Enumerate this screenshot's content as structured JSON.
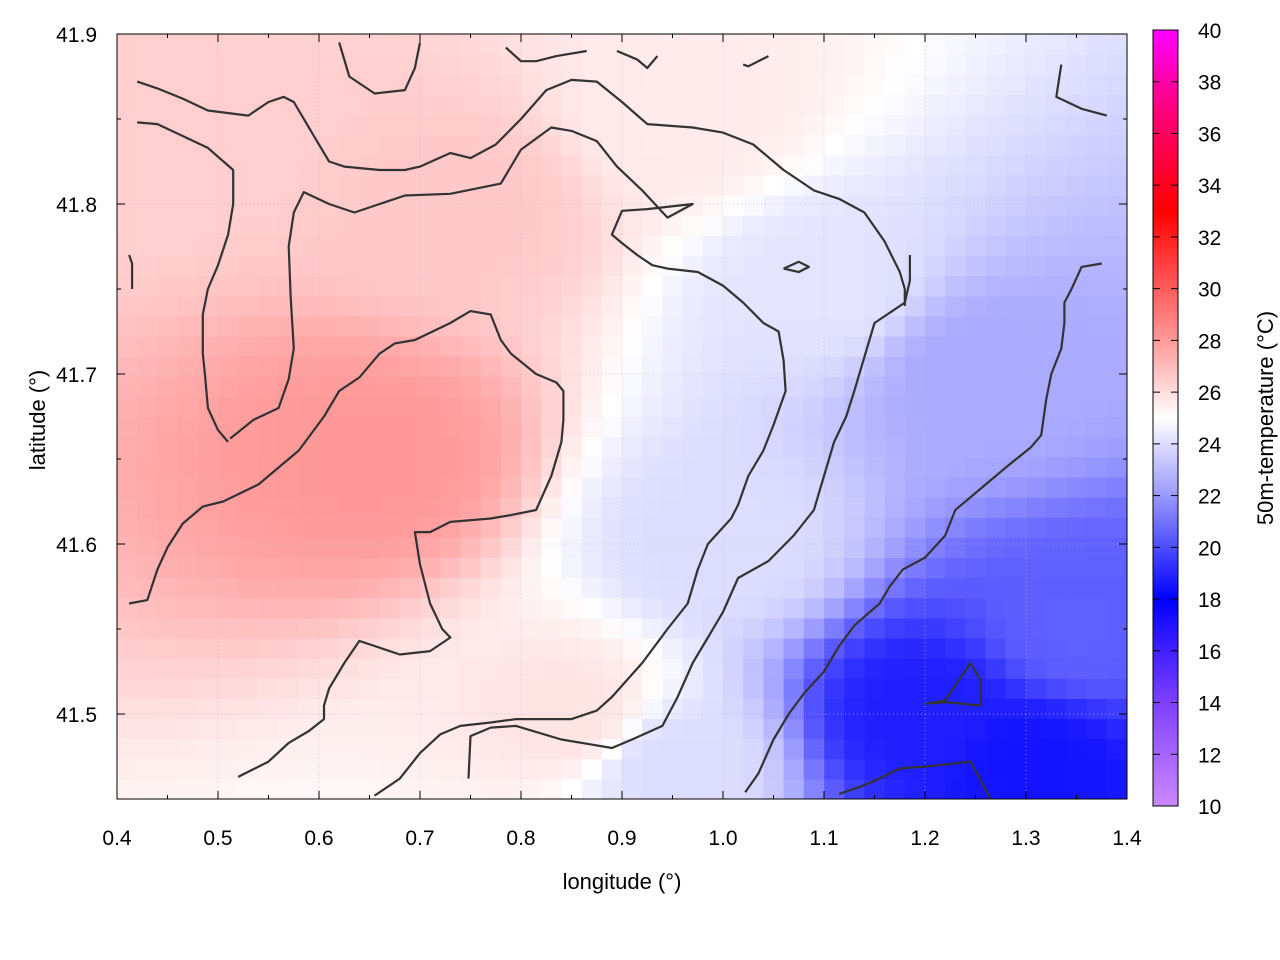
{
  "chart_data": {
    "type": "heatmap",
    "title": "",
    "xlabel": "longitude (°)",
    "ylabel": "latitude (°)",
    "colorbar_label": "50m-temperature (°C)",
    "xlim": [
      0.4,
      1.4
    ],
    "ylim": [
      41.45,
      41.9
    ],
    "x_ticks": [
      0.4,
      0.5,
      0.6,
      0.7,
      0.8,
      0.9,
      1.0,
      1.1,
      1.2,
      1.3,
      1.4
    ],
    "x_tick_labels": [
      "0.4",
      "0.5",
      "0.6",
      "0.7",
      "0.8",
      "0.9",
      "1.0",
      "1.1",
      "1.2",
      "1.3",
      "1.4"
    ],
    "y_ticks": [
      41.5,
      41.6,
      41.7,
      41.8,
      41.9
    ],
    "y_tick_labels": [
      "41.5",
      "41.6",
      "41.7",
      "41.8",
      "41.9"
    ],
    "colorbar_range": [
      10,
      40
    ],
    "colorbar_ticks": [
      10,
      12,
      14,
      16,
      18,
      20,
      22,
      24,
      26,
      28,
      30,
      32,
      34,
      36,
      38,
      40
    ],
    "colorbar_tick_labels": [
      "10",
      "12",
      "14",
      "16",
      "18",
      "20",
      "22",
      "24",
      "26",
      "28",
      "30",
      "32",
      "34",
      "36",
      "38",
      "40"
    ],
    "colormap": [
      {
        "value": 10,
        "color": "#cc88ff"
      },
      {
        "value": 14,
        "color": "#7f40ff"
      },
      {
        "value": 18,
        "color": "#0000ff"
      },
      {
        "value": 22,
        "color": "#9999ff"
      },
      {
        "value": 25,
        "color": "#ffffff"
      },
      {
        "value": 28,
        "color": "#ff9999"
      },
      {
        "value": 33,
        "color": "#ff0000"
      },
      {
        "value": 37,
        "color": "#ff0080"
      },
      {
        "value": 40,
        "color": "#ff00ff"
      }
    ],
    "grid": true,
    "field_description_points": [
      {
        "lon": 0.45,
        "lat": 41.85,
        "temp": 26.4
      },
      {
        "lon": 0.65,
        "lat": 41.65,
        "temp": 28.0
      },
      {
        "lon": 0.75,
        "lat": 41.8,
        "temp": 26.6
      },
      {
        "lon": 0.95,
        "lat": 41.85,
        "temp": 25.6
      },
      {
        "lon": 1.0,
        "lat": 41.6,
        "temp": 24.0
      },
      {
        "lon": 1.1,
        "lat": 41.75,
        "temp": 24.2
      },
      {
        "lon": 1.25,
        "lat": 41.7,
        "temp": 22.5
      },
      {
        "lon": 1.35,
        "lat": 41.55,
        "temp": 20.5
      },
      {
        "lon": 1.2,
        "lat": 41.5,
        "temp": 18.8
      },
      {
        "lon": 1.3,
        "lat": 41.47,
        "temp": 18.5
      },
      {
        "lon": 0.85,
        "lat": 41.5,
        "temp": 25.8
      },
      {
        "lon": 0.95,
        "lat": 41.47,
        "temp": 24.0
      }
    ],
    "contour_color": "#333333",
    "contours": [
      [
        [
          0.42,
          41.872
        ],
        [
          0.44,
          41.868
        ],
        [
          0.465,
          41.862
        ],
        [
          0.49,
          41.855
        ],
        [
          0.53,
          41.852
        ],
        [
          0.55,
          41.86
        ],
        [
          0.565,
          41.863
        ],
        [
          0.575,
          41.86
        ],
        [
          0.595,
          41.84
        ],
        [
          0.61,
          41.825
        ],
        [
          0.625,
          41.822
        ],
        [
          0.66,
          41.82
        ],
        [
          0.685,
          41.82
        ],
        [
          0.7,
          41.822
        ],
        [
          0.73,
          41.83
        ],
        [
          0.75,
          41.827
        ],
        [
          0.775,
          41.835
        ],
        [
          0.8,
          41.85
        ],
        [
          0.825,
          41.867
        ],
        [
          0.85,
          41.873
        ],
        [
          0.875,
          41.872
        ],
        [
          0.9,
          41.86
        ],
        [
          0.925,
          41.847
        ],
        [
          0.97,
          41.845
        ],
        [
          1.0,
          41.842
        ],
        [
          1.03,
          41.835
        ],
        [
          1.06,
          41.82
        ],
        [
          1.09,
          41.808
        ],
        [
          1.115,
          41.803
        ],
        [
          1.14,
          41.795
        ],
        [
          1.16,
          41.778
        ],
        [
          1.17,
          41.766
        ],
        [
          1.175,
          41.76
        ],
        [
          1.18,
          41.75
        ],
        [
          1.18,
          41.74
        ]
      ],
      [
        [
          0.42,
          41.848
        ],
        [
          0.44,
          41.847
        ],
        [
          0.465,
          41.84
        ],
        [
          0.49,
          41.833
        ],
        [
          0.515,
          41.82
        ],
        [
          0.515,
          41.8
        ],
        [
          0.51,
          41.782
        ],
        [
          0.5,
          41.764
        ],
        [
          0.49,
          41.75
        ],
        [
          0.485,
          41.735
        ],
        [
          0.485,
          41.712
        ],
        [
          0.487,
          41.7
        ],
        [
          0.49,
          41.68
        ],
        [
          0.5,
          41.667
        ],
        [
          0.51,
          41.66
        ]
      ],
      [
        [
          0.512,
          41.662
        ],
        [
          0.535,
          41.673
        ],
        [
          0.56,
          41.68
        ],
        [
          0.57,
          41.697
        ],
        [
          0.575,
          41.715
        ],
        [
          0.572,
          41.745
        ],
        [
          0.57,
          41.775
        ],
        [
          0.575,
          41.795
        ],
        [
          0.585,
          41.807
        ],
        [
          0.61,
          41.8
        ],
        [
          0.635,
          41.795
        ],
        [
          0.66,
          41.8
        ],
        [
          0.685,
          41.805
        ],
        [
          0.73,
          41.806
        ],
        [
          0.78,
          41.812
        ],
        [
          0.8,
          41.832
        ],
        [
          0.83,
          41.845
        ],
        [
          0.85,
          41.843
        ],
        [
          0.875,
          41.837
        ],
        [
          0.895,
          41.822
        ],
        [
          0.92,
          41.808
        ],
        [
          0.945,
          41.792
        ],
        [
          0.97,
          41.8
        ],
        [
          0.925,
          41.797
        ],
        [
          0.9,
          41.796
        ],
        [
          0.89,
          41.782
        ],
        [
          0.9,
          41.777
        ],
        [
          0.915,
          41.77
        ],
        [
          0.93,
          41.764
        ],
        [
          0.945,
          41.762
        ],
        [
          0.975,
          41.76
        ],
        [
          1.0,
          41.752
        ],
        [
          1.02,
          41.742
        ],
        [
          1.04,
          41.73
        ],
        [
          1.055,
          41.725
        ],
        [
          1.06,
          41.708
        ],
        [
          1.062,
          41.69
        ],
        [
          1.05,
          41.67
        ],
        [
          1.04,
          41.655
        ],
        [
          1.025,
          41.64
        ],
        [
          1.015,
          41.623
        ],
        [
          1.008,
          41.615
        ],
        [
          0.985,
          41.6
        ],
        [
          0.975,
          41.585
        ],
        [
          0.965,
          41.565
        ],
        [
          0.945,
          41.55
        ],
        [
          0.92,
          41.53
        ],
        [
          0.89,
          41.51
        ],
        [
          0.875,
          41.502
        ],
        [
          0.85,
          41.497
        ],
        [
          0.795,
          41.497
        ],
        [
          0.77,
          41.495
        ],
        [
          0.74,
          41.493
        ],
        [
          0.72,
          41.488
        ],
        [
          0.7,
          41.477
        ],
        [
          0.68,
          41.462
        ],
        [
          0.655,
          41.452
        ]
      ],
      [
        [
          0.412,
          41.565
        ],
        [
          0.43,
          41.567
        ],
        [
          0.44,
          41.585
        ],
        [
          0.45,
          41.598
        ],
        [
          0.465,
          41.612
        ],
        [
          0.485,
          41.622
        ],
        [
          0.505,
          41.625
        ],
        [
          0.54,
          41.635
        ],
        [
          0.56,
          41.645
        ],
        [
          0.58,
          41.655
        ],
        [
          0.595,
          41.667
        ],
        [
          0.605,
          41.675
        ],
        [
          0.62,
          41.69
        ],
        [
          0.64,
          41.698
        ],
        [
          0.66,
          41.712
        ],
        [
          0.675,
          41.718
        ],
        [
          0.695,
          41.72
        ],
        [
          0.73,
          41.73
        ],
        [
          0.75,
          41.737
        ],
        [
          0.77,
          41.735
        ],
        [
          0.78,
          41.72
        ],
        [
          0.79,
          41.712
        ],
        [
          0.815,
          41.7
        ],
        [
          0.835,
          41.695
        ],
        [
          0.842,
          41.69
        ],
        [
          0.842,
          41.673
        ],
        [
          0.84,
          41.66
        ],
        [
          0.83,
          41.64
        ],
        [
          0.815,
          41.62
        ],
        [
          0.79,
          41.617
        ],
        [
          0.77,
          41.615
        ],
        [
          0.73,
          41.613
        ],
        [
          0.71,
          41.607
        ],
        [
          0.695,
          41.607
        ],
        [
          0.7,
          41.588
        ],
        [
          0.71,
          41.565
        ],
        [
          0.722,
          41.55
        ],
        [
          0.73,
          41.545
        ],
        [
          0.71,
          41.537
        ],
        [
          0.68,
          41.535
        ],
        [
          0.655,
          41.54
        ],
        [
          0.64,
          41.543
        ],
        [
          0.625,
          41.53
        ],
        [
          0.61,
          41.515
        ],
        [
          0.605,
          41.505
        ],
        [
          0.605,
          41.497
        ],
        [
          0.59,
          41.49
        ],
        [
          0.57,
          41.483
        ],
        [
          0.55,
          41.472
        ],
        [
          0.52,
          41.463
        ]
      ],
      [
        [
          0.748,
          41.462
        ],
        [
          0.75,
          41.487
        ],
        [
          0.77,
          41.492
        ],
        [
          0.795,
          41.493
        ],
        [
          0.84,
          41.485
        ],
        [
          0.87,
          41.482
        ],
        [
          0.89,
          41.48
        ],
        [
          0.91,
          41.485
        ],
        [
          0.94,
          41.493
        ],
        [
          0.955,
          41.51
        ],
        [
          0.97,
          41.53
        ],
        [
          0.985,
          41.545
        ],
        [
          1.0,
          41.56
        ],
        [
          1.015,
          41.58
        ],
        [
          1.045,
          41.59
        ],
        [
          1.07,
          41.605
        ],
        [
          1.09,
          41.62
        ],
        [
          1.1,
          41.64
        ],
        [
          1.11,
          41.66
        ],
        [
          1.122,
          41.675
        ],
        [
          1.13,
          41.69
        ],
        [
          1.14,
          41.71
        ],
        [
          1.15,
          41.73
        ],
        [
          1.18,
          41.742
        ],
        [
          1.185,
          41.755
        ],
        [
          1.185,
          41.77
        ]
      ],
      [
        [
          1.06,
          41.762
        ],
        [
          1.075,
          41.766
        ],
        [
          1.085,
          41.763
        ],
        [
          1.075,
          41.76
        ],
        [
          1.06,
          41.762
        ]
      ],
      [
        [
          1.022,
          41.454
        ],
        [
          1.035,
          41.465
        ],
        [
          1.05,
          41.485
        ],
        [
          1.065,
          41.5
        ],
        [
          1.08,
          41.512
        ],
        [
          1.1,
          41.525
        ],
        [
          1.115,
          41.54
        ],
        [
          1.13,
          41.552
        ],
        [
          1.155,
          41.565
        ],
        [
          1.165,
          41.575
        ],
        [
          1.178,
          41.585
        ],
        [
          1.2,
          41.592
        ],
        [
          1.22,
          41.605
        ],
        [
          1.23,
          41.62
        ],
        [
          1.25,
          41.63
        ],
        [
          1.28,
          41.645
        ],
        [
          1.305,
          41.657
        ],
        [
          1.315,
          41.664
        ],
        [
          1.32,
          41.685
        ],
        [
          1.325,
          41.7
        ],
        [
          1.335,
          41.715
        ],
        [
          1.338,
          41.73
        ],
        [
          1.338,
          41.742
        ],
        [
          1.345,
          41.75
        ],
        [
          1.355,
          41.763
        ],
        [
          1.375,
          41.765
        ]
      ],
      [
        [
          1.115,
          41.453
        ],
        [
          1.135,
          41.457
        ],
        [
          1.155,
          41.462
        ],
        [
          1.175,
          41.468
        ],
        [
          1.2,
          41.469
        ],
        [
          1.245,
          41.472
        ],
        [
          1.265,
          41.45
        ]
      ],
      [
        [
          1.2,
          41.506
        ],
        [
          1.22,
          41.508
        ],
        [
          1.245,
          41.53
        ],
        [
          1.255,
          41.52
        ],
        [
          1.255,
          41.505
        ],
        [
          1.22,
          41.507
        ],
        [
          1.2,
          41.506
        ]
      ],
      [
        [
          0.62,
          41.895
        ],
        [
          0.63,
          41.875
        ],
        [
          0.655,
          41.865
        ],
        [
          0.685,
          41.867
        ],
        [
          0.695,
          41.88
        ],
        [
          0.7,
          41.895
        ]
      ],
      [
        [
          0.785,
          41.892
        ],
        [
          0.8,
          41.884
        ],
        [
          0.815,
          41.884
        ],
        [
          0.835,
          41.887
        ],
        [
          0.865,
          41.89
        ]
      ],
      [
        [
          0.895,
          41.89
        ],
        [
          0.915,
          41.885
        ],
        [
          0.925,
          41.88
        ],
        [
          0.935,
          41.887
        ]
      ],
      [
        [
          1.02,
          41.882
        ],
        [
          1.025,
          41.881
        ],
        [
          1.045,
          41.887
        ]
      ],
      [
        [
          1.335,
          41.882
        ],
        [
          1.33,
          41.863
        ],
        [
          1.355,
          41.856
        ],
        [
          1.38,
          41.852
        ]
      ],
      [
        [
          0.415,
          41.75
        ],
        [
          0.415,
          41.765
        ],
        [
          0.412,
          41.77
        ]
      ]
    ]
  }
}
